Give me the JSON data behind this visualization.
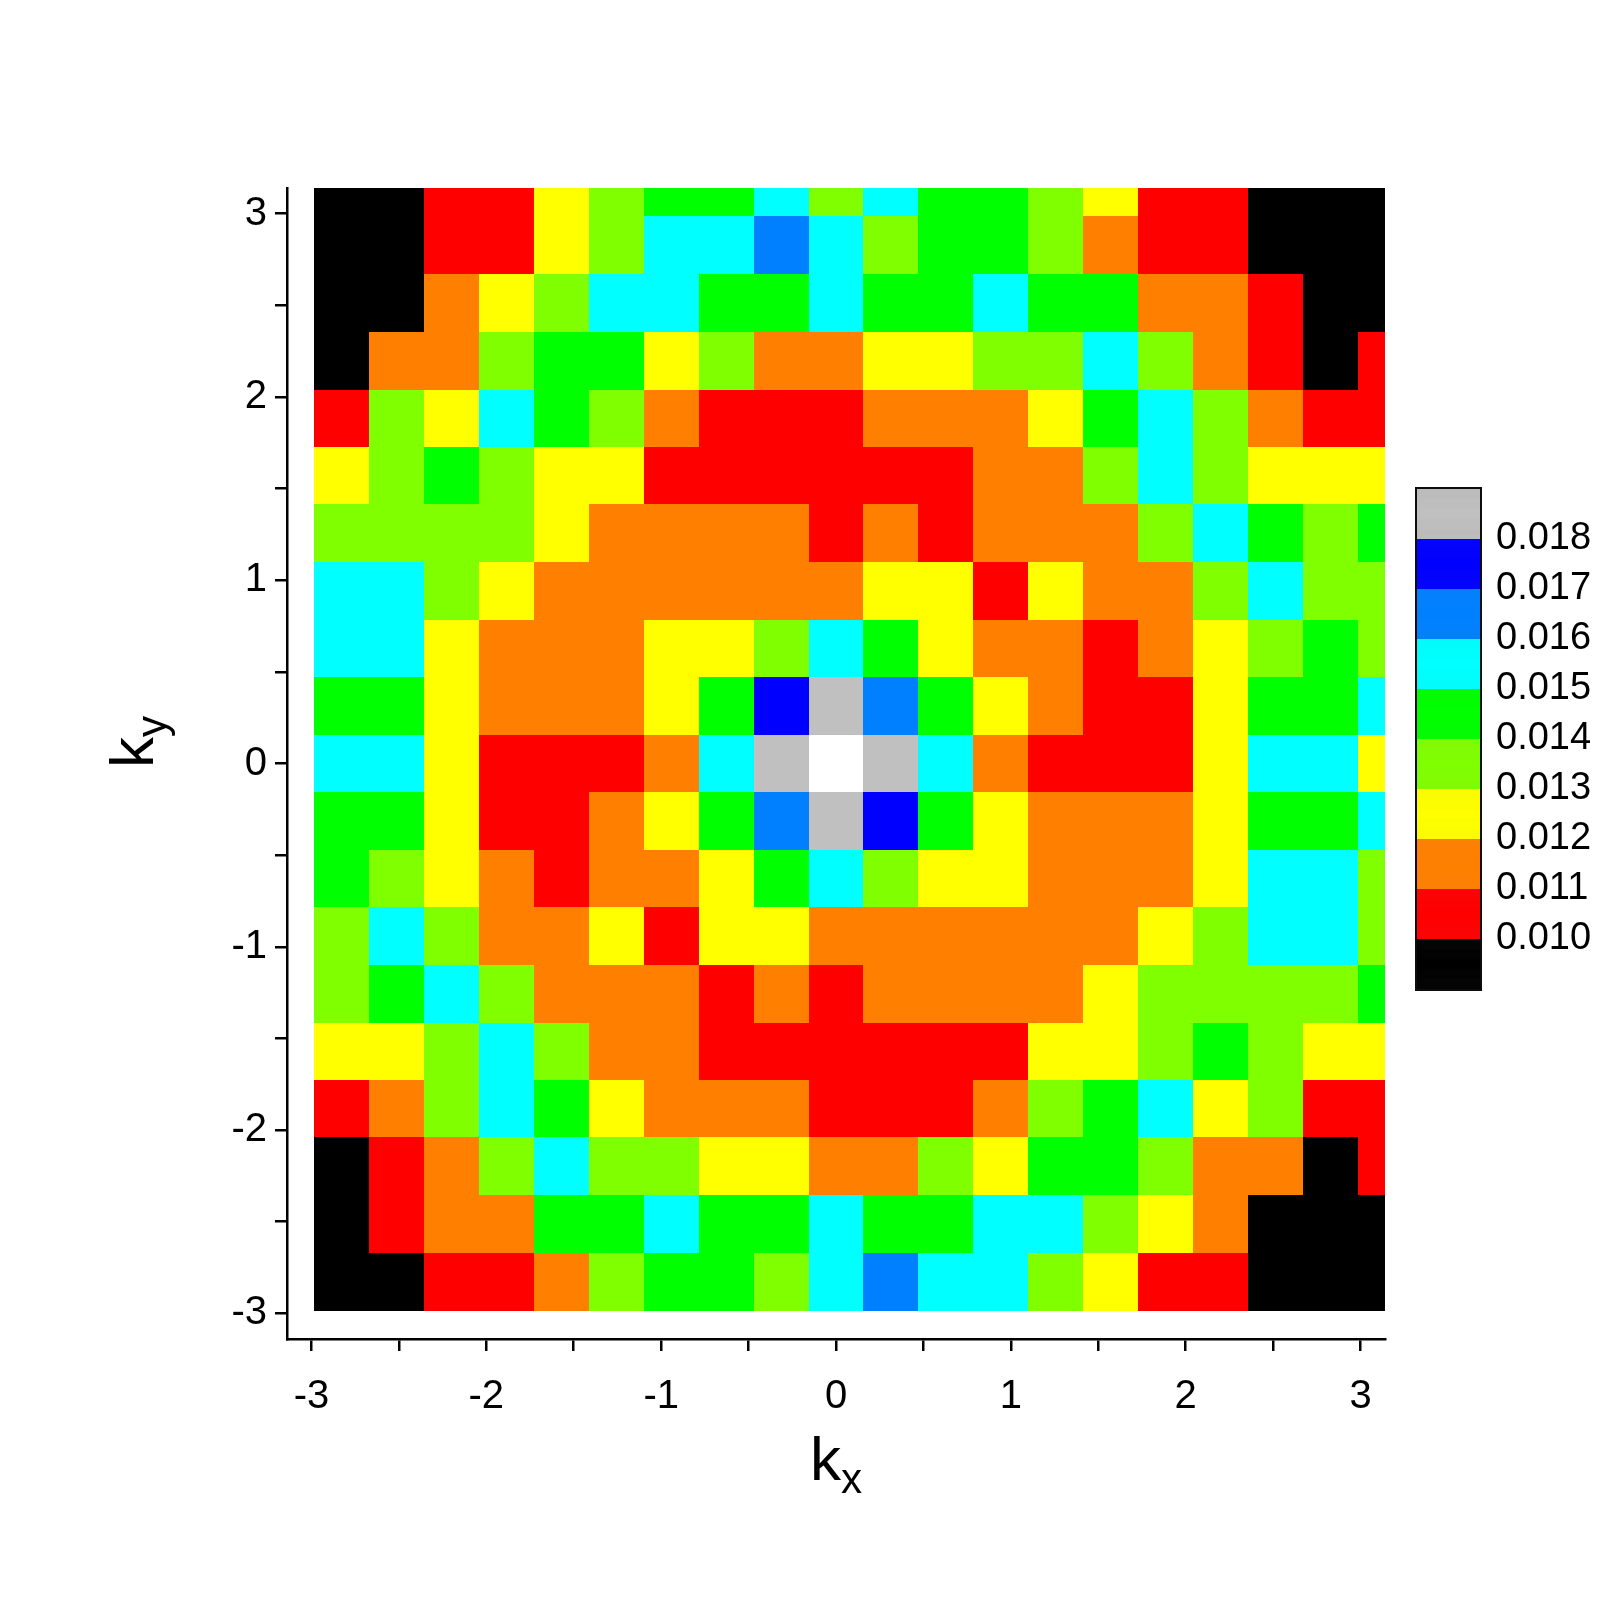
{
  "chart_data": {
    "type": "heatmap",
    "xlabel": "k$_{x}$",
    "ylabel": "k$_{y}$",
    "x": [
      -2.83,
      -2.51,
      -2.2,
      -1.88,
      -1.57,
      -1.26,
      -0.94,
      -0.63,
      -0.31,
      0,
      0.31,
      0.63,
      0.94,
      1.26,
      1.57,
      1.88,
      2.2,
      2.51,
      2.83,
      3.06
    ],
    "y": [
      3.06,
      2.83,
      2.51,
      2.2,
      1.88,
      1.57,
      1.26,
      0.94,
      0.63,
      0.31,
      0,
      -0.31,
      -0.63,
      -0.94,
      -1.26,
      -1.57,
      -1.88,
      -2.2,
      -2.51,
      -2.83
    ],
    "cells": [
      [
        0.0095,
        0.0095,
        0.0105,
        0.0105,
        0.0125,
        0.0135,
        0.0145,
        0.0145,
        0.0155,
        0.0135,
        0.0155,
        0.0145,
        0.0145,
        0.0135,
        0.0125,
        0.0105,
        0.0105,
        0.0095,
        0.0095,
        0.0095
      ],
      [
        0.0095,
        0.0095,
        0.0105,
        0.0105,
        0.0125,
        0.0135,
        0.0155,
        0.0155,
        0.0165,
        0.0155,
        0.0135,
        0.0145,
        0.0145,
        0.0135,
        0.0115,
        0.0105,
        0.0105,
        0.0095,
        0.0095,
        0.0095
      ],
      [
        0.0095,
        0.0095,
        0.0115,
        0.0125,
        0.0135,
        0.0155,
        0.0155,
        0.0145,
        0.0145,
        0.0155,
        0.0145,
        0.0145,
        0.0155,
        0.0145,
        0.0145,
        0.0115,
        0.0115,
        0.0105,
        0.0095,
        0.0095
      ],
      [
        0.0095,
        0.0115,
        0.0115,
        0.0135,
        0.0145,
        0.0145,
        0.0125,
        0.0135,
        0.0115,
        0.0115,
        0.0125,
        0.0125,
        0.0135,
        0.0135,
        0.0155,
        0.0135,
        0.0115,
        0.0105,
        0.0095,
        0.0105
      ],
      [
        0.0105,
        0.0135,
        0.0125,
        0.0155,
        0.0145,
        0.0135,
        0.0115,
        0.0105,
        0.0105,
        0.0105,
        0.0115,
        0.0115,
        0.0115,
        0.0125,
        0.0145,
        0.0155,
        0.0135,
        0.0115,
        0.0105,
        0.0105
      ],
      [
        0.0125,
        0.0135,
        0.0145,
        0.0135,
        0.0125,
        0.0125,
        0.0105,
        0.0105,
        0.0105,
        0.0105,
        0.0105,
        0.0105,
        0.0115,
        0.0115,
        0.0135,
        0.0155,
        0.0135,
        0.0125,
        0.0125,
        0.0125
      ],
      [
        0.0135,
        0.0135,
        0.0135,
        0.0135,
        0.0125,
        0.0115,
        0.0115,
        0.0115,
        0.0115,
        0.0105,
        0.0115,
        0.0105,
        0.0115,
        0.0115,
        0.0115,
        0.0135,
        0.0155,
        0.0145,
        0.0135,
        0.0145
      ],
      [
        0.0155,
        0.0155,
        0.0135,
        0.0125,
        0.0115,
        0.0115,
        0.0115,
        0.0115,
        0.0115,
        0.0115,
        0.0125,
        0.0125,
        0.0105,
        0.0125,
        0.0115,
        0.0115,
        0.0135,
        0.0155,
        0.0135,
        0.0135
      ],
      [
        0.0155,
        0.0155,
        0.0125,
        0.0115,
        0.0115,
        0.0115,
        0.0125,
        0.0125,
        0.0135,
        0.0155,
        0.0145,
        0.0125,
        0.0115,
        0.0115,
        0.0105,
        0.0115,
        0.0125,
        0.0135,
        0.0145,
        0.0135
      ],
      [
        0.0145,
        0.0145,
        0.0125,
        0.0115,
        0.0115,
        0.0115,
        0.0125,
        0.0145,
        0.0175,
        0.0185,
        0.0165,
        0.0145,
        0.0125,
        0.0115,
        0.0105,
        0.0105,
        0.0125,
        0.0145,
        0.0145,
        0.0155
      ],
      [
        0.0155,
        0.0155,
        0.0125,
        0.0105,
        0.0105,
        0.0105,
        0.0115,
        0.0155,
        0.0185,
        null,
        0.0185,
        0.0155,
        0.0115,
        0.0105,
        0.0105,
        0.0105,
        0.0125,
        0.0155,
        0.0155,
        0.0125
      ],
      [
        0.0145,
        0.0145,
        0.0125,
        0.0105,
        0.0105,
        0.0115,
        0.0125,
        0.0145,
        0.0165,
        0.0185,
        0.0175,
        0.0145,
        0.0125,
        0.0115,
        0.0115,
        0.0115,
        0.0125,
        0.0145,
        0.0145,
        0.0155
      ],
      [
        0.0145,
        0.0135,
        0.0125,
        0.0115,
        0.0105,
        0.0115,
        0.0115,
        0.0125,
        0.0145,
        0.0155,
        0.0135,
        0.0125,
        0.0125,
        0.0115,
        0.0115,
        0.0115,
        0.0125,
        0.0155,
        0.0155,
        0.0135
      ],
      [
        0.0135,
        0.0155,
        0.0135,
        0.0115,
        0.0115,
        0.0125,
        0.0105,
        0.0125,
        0.0125,
        0.0115,
        0.0115,
        0.0115,
        0.0115,
        0.0115,
        0.0115,
        0.0125,
        0.0135,
        0.0155,
        0.0155,
        0.0135
      ],
      [
        0.0135,
        0.0145,
        0.0155,
        0.0135,
        0.0115,
        0.0115,
        0.0115,
        0.0105,
        0.0115,
        0.0105,
        0.0115,
        0.0115,
        0.0115,
        0.0115,
        0.0125,
        0.0135,
        0.0135,
        0.0135,
        0.0135,
        0.0145
      ],
      [
        0.0125,
        0.0125,
        0.0135,
        0.0155,
        0.0135,
        0.0115,
        0.0115,
        0.0105,
        0.0105,
        0.0105,
        0.0105,
        0.0105,
        0.0105,
        0.0125,
        0.0125,
        0.0135,
        0.0145,
        0.0135,
        0.0125,
        0.0125
      ],
      [
        0.0105,
        0.0115,
        0.0135,
        0.0155,
        0.0145,
        0.0125,
        0.0115,
        0.0115,
        0.0115,
        0.0105,
        0.0105,
        0.0105,
        0.0115,
        0.0135,
        0.0145,
        0.0155,
        0.0125,
        0.0135,
        0.0105,
        0.0105
      ],
      [
        0.0095,
        0.0105,
        0.0115,
        0.0135,
        0.0155,
        0.0135,
        0.0135,
        0.0125,
        0.0125,
        0.0115,
        0.0115,
        0.0135,
        0.0125,
        0.0145,
        0.0145,
        0.0135,
        0.0115,
        0.0115,
        0.0095,
        0.0105
      ],
      [
        0.0095,
        0.0105,
        0.0115,
        0.0115,
        0.0145,
        0.0145,
        0.0155,
        0.0145,
        0.0145,
        0.0155,
        0.0145,
        0.0145,
        0.0155,
        0.0155,
        0.0135,
        0.0125,
        0.0115,
        0.0095,
        0.0095,
        0.0095
      ],
      [
        0.0095,
        0.0095,
        0.0105,
        0.0105,
        0.0115,
        0.0135,
        0.0145,
        0.0145,
        0.0135,
        0.0155,
        0.0165,
        0.0155,
        0.0155,
        0.0135,
        0.0125,
        0.0105,
        0.0105,
        0.0095,
        0.0095,
        0.0095
      ]
    ],
    "clim": [
      0.009,
      0.019
    ],
    "cticks": [
      {
        "value": 0.01,
        "label": "0.010"
      },
      0.011,
      0.012,
      0.013,
      0.014,
      0.015,
      0.016,
      0.017,
      0.018
    ],
    "xlim": [
      -3.14,
      3.14
    ],
    "xticks": [
      -3,
      {
        "value": -2.5,
        "label": null
      },
      -2,
      {
        "value": -1.5,
        "label": null
      },
      -1,
      {
        "value": -0.5,
        "label": null
      },
      0,
      {
        "value": 0.5,
        "label": null
      },
      1,
      {
        "value": 1.5,
        "label": null
      },
      2,
      {
        "value": 2.5,
        "label": null
      },
      3
    ],
    "ylim": [
      -3.14,
      3.14
    ],
    "yticks": [
      -3,
      {
        "value": -2.5,
        "label": null
      },
      -2,
      {
        "value": -1.5,
        "label": null
      },
      -1,
      {
        "value": -0.5,
        "label": null
      },
      0,
      {
        "value": 0.5,
        "label": null
      },
      1,
      {
        "value": 1.5,
        "label": null
      },
      2,
      {
        "value": 2.5,
        "label": null
      },
      3
    ]
  }
}
